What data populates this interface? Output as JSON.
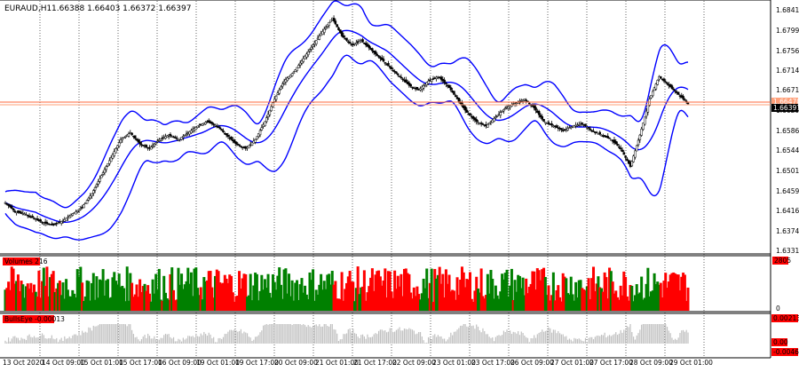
{
  "window": {
    "symbol_title": "EURAUD,H1",
    "ohlc": "1.66388 1.66403 1.66372 1.66397",
    "current_price": "1.66397",
    "alt_price_label": "1.66470"
  },
  "price_axis": {
    "ticks": [
      "1.68410",
      "1.67990",
      "1.67560",
      "1.67140",
      "1.66710",
      "1.66290",
      "1.65860",
      "1.65440",
      "1.65010",
      "1.64590",
      "1.64160",
      "1.63740",
      "1.63310"
    ]
  },
  "volume_panel": {
    "label": "Volumes 216",
    "axis_top": "2805",
    "axis_bottom": "0"
  },
  "indicator_panel": {
    "label": "BullsEye -0.00013",
    "axis_top": "0.00213",
    "axis_mid": "0.00",
    "axis_bottom": "-0.00463"
  },
  "time_axis": {
    "labels": [
      "13 Oct 2020",
      "14 Oct 09:00",
      "15 Oct 01:00",
      "15 Oct 17:00",
      "16 Oct 09:00",
      "19 Oct 01:00",
      "19 Oct 17:00",
      "20 Oct 09:00",
      "21 Oct 01:00",
      "21 Oct 17:00",
      "22 Oct 09:00",
      "23 Oct 01:00",
      "23 Oct 17:00",
      "26 Oct 09:00",
      "27 Oct 01:00",
      "27 Oct 17:00",
      "28 Oct 09:00",
      "29 Oct 01:00"
    ]
  },
  "colors": {
    "background": "#ffffff",
    "candle": "#000000",
    "bands": "#0000ff",
    "arrows": "#ff00ff",
    "volume_up": "#008000",
    "volume_down": "#ff0000",
    "indicator_hist": "#c0c0c0",
    "label_bg": "#ff0000",
    "bid_line": "#ff6a3d",
    "ask_line": "#ffa07a",
    "grid": "#000000"
  },
  "chart_data": {
    "type": "candlestick",
    "ylim": [
      1.631,
      1.6858
    ],
    "series": [
      {
        "name": "EURAUD",
        "close": [
          1.642,
          1.64,
          1.6395,
          1.6385,
          1.6375,
          1.637,
          1.638,
          1.6395,
          1.641,
          1.644,
          1.648,
          1.652,
          1.656,
          1.6575,
          1.655,
          1.654,
          1.656,
          1.657,
          1.656,
          1.6575,
          1.659,
          1.66,
          1.659,
          1.657,
          1.655,
          1.654,
          1.656,
          1.66,
          1.665,
          1.669,
          1.671,
          1.674,
          1.677,
          1.68,
          1.683,
          1.679,
          1.677,
          1.678,
          1.676,
          1.674,
          1.672,
          1.67,
          1.668,
          1.667,
          1.669,
          1.67,
          1.668,
          1.665,
          1.662,
          1.66,
          1.659,
          1.661,
          1.663,
          1.664,
          1.665,
          1.663,
          1.66,
          1.659,
          1.658,
          1.659,
          1.6595,
          1.658,
          1.657,
          1.656,
          1.654,
          1.65,
          1.657,
          1.665,
          1.67,
          1.668,
          1.666,
          1.664
        ]
      }
    ]
  }
}
